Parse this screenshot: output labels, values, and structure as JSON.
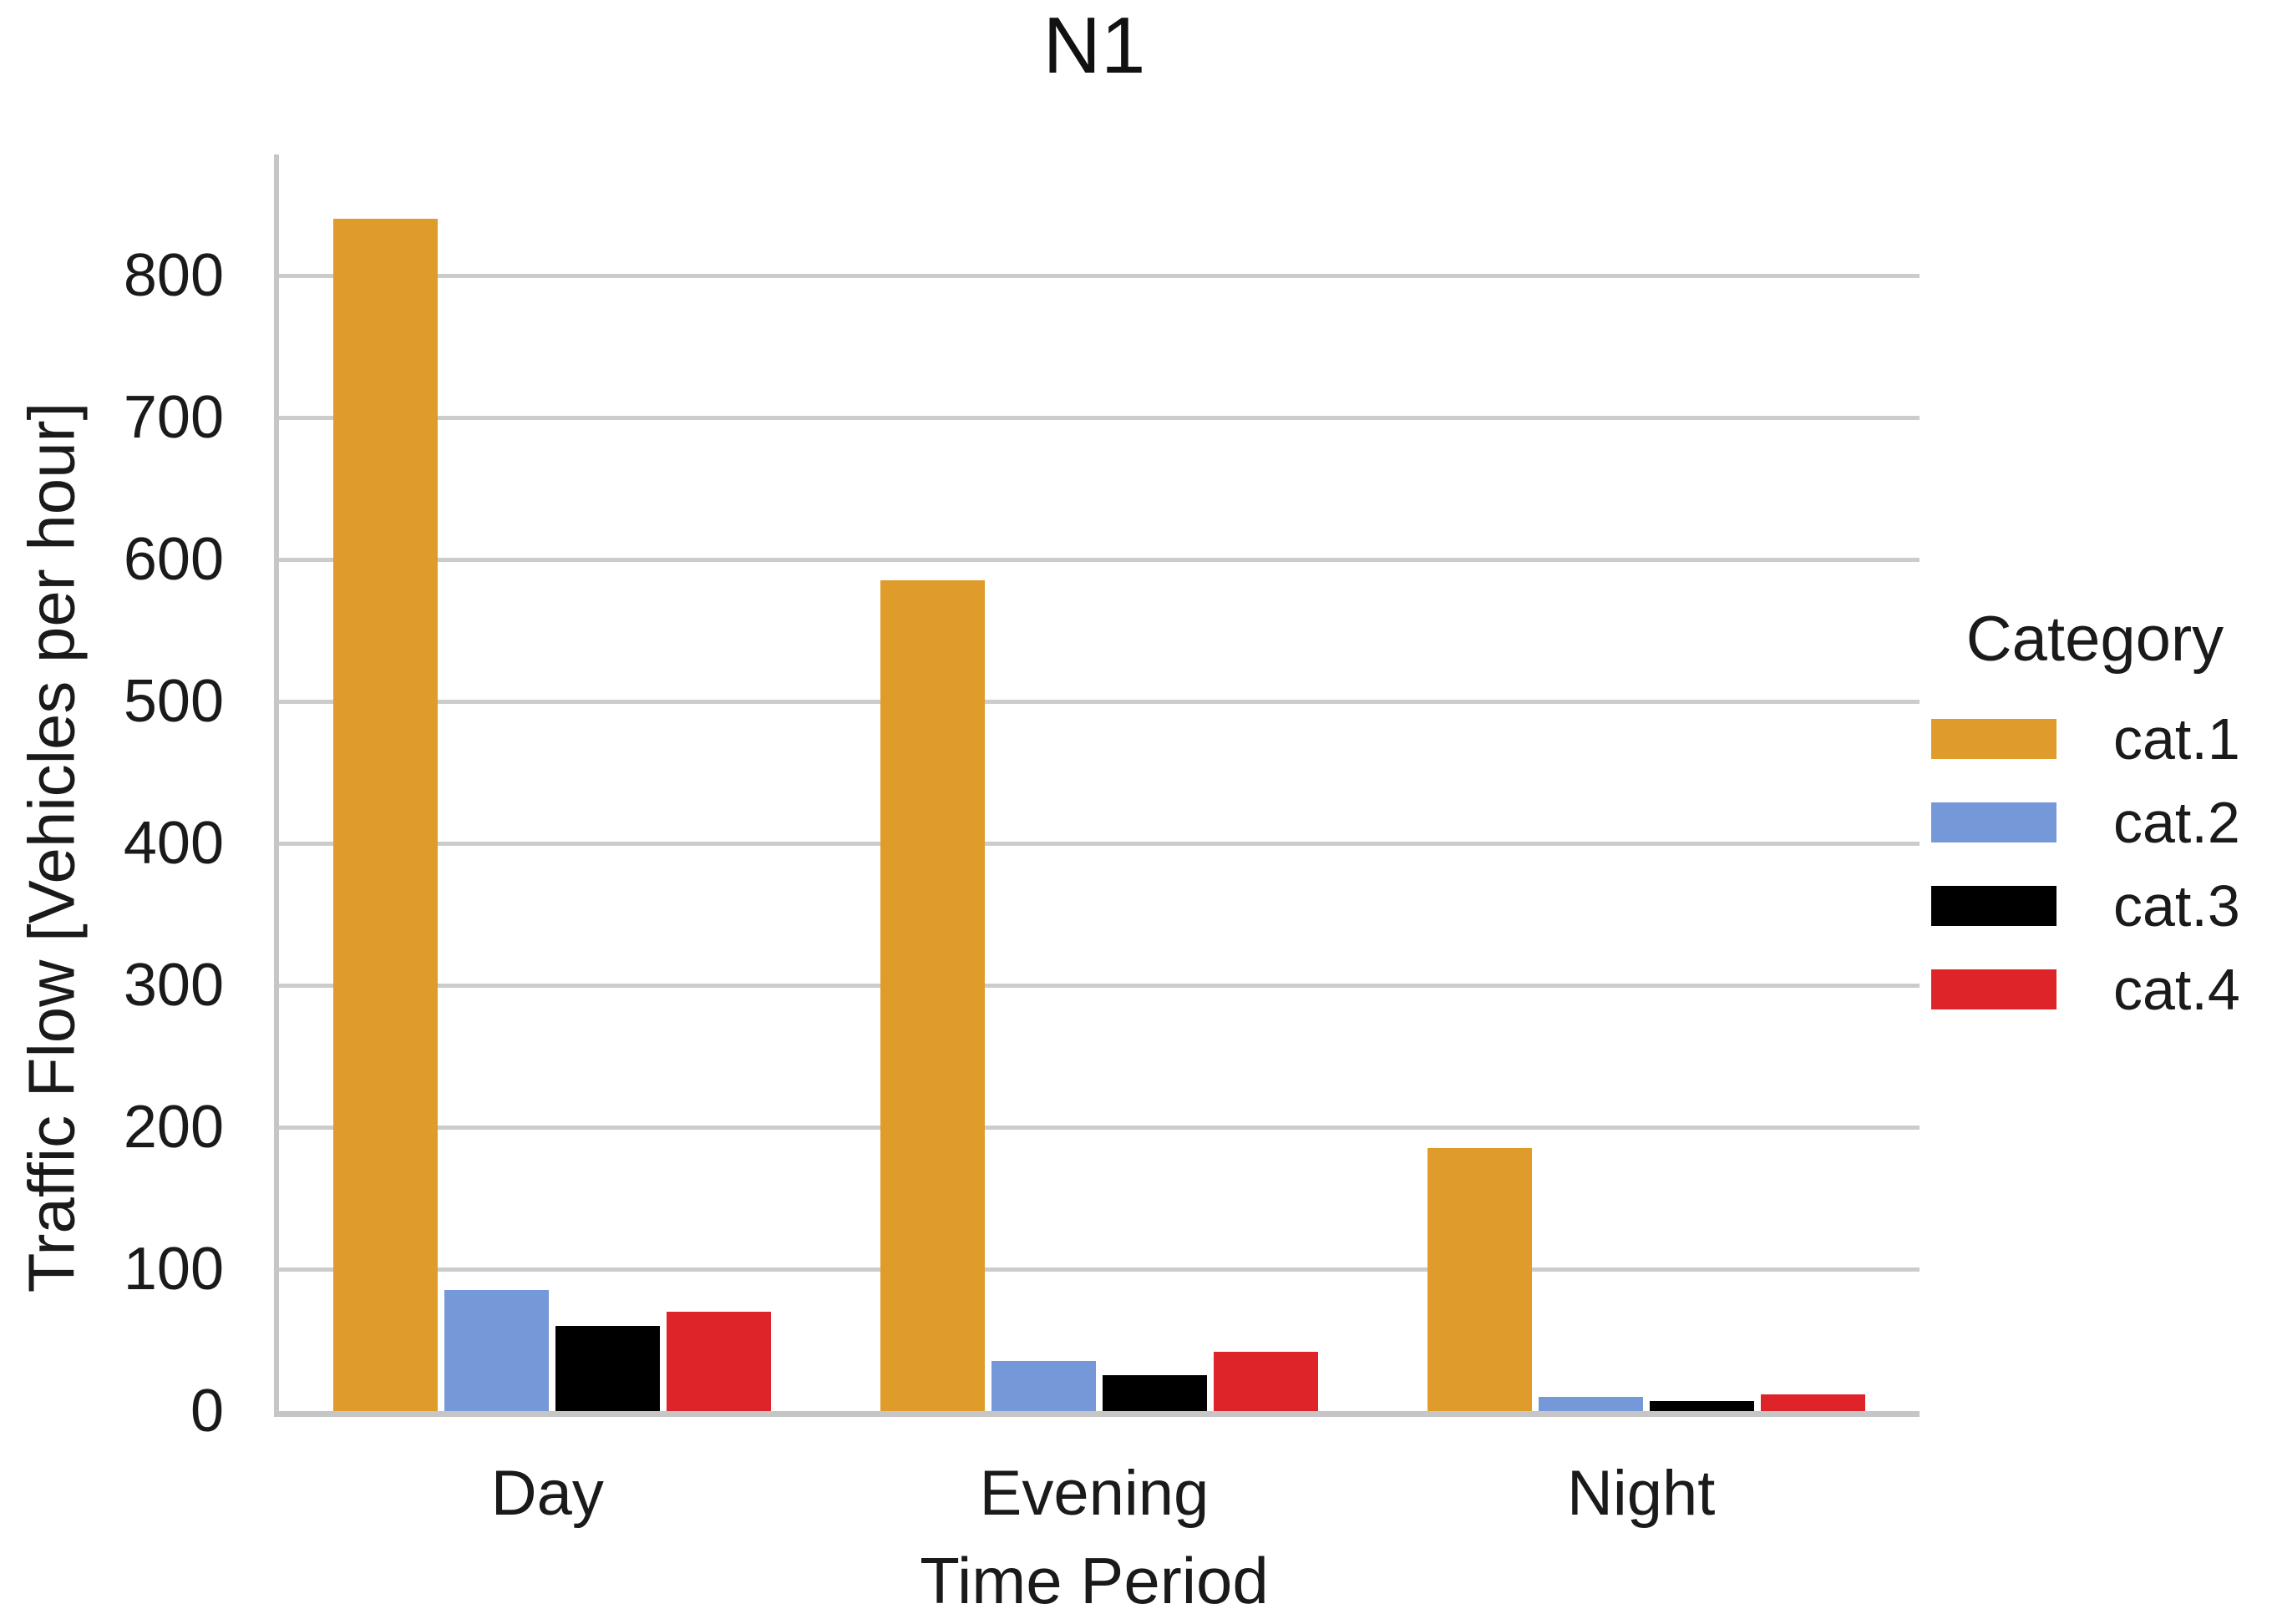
{
  "chart_data": {
    "type": "bar",
    "title": "N1",
    "xlabel": "Time Period",
    "ylabel": "Traffic Flow [Vehicles per hour]",
    "legend_title": "Category",
    "legend_position": "right",
    "grid": true,
    "categories": [
      "Day",
      "Evening",
      "Night"
    ],
    "series": [
      {
        "name": "cat.1",
        "color": "#E09C2B",
        "values": [
          840,
          585,
          185
        ]
      },
      {
        "name": "cat.2",
        "color": "#7598D8",
        "values": [
          85,
          35,
          10
        ]
      },
      {
        "name": "cat.3",
        "color": "#000000",
        "values": [
          60,
          25,
          7
        ]
      },
      {
        "name": "cat.4",
        "color": "#DE2428",
        "values": [
          70,
          42,
          12
        ]
      }
    ],
    "yticks": [
      0,
      100,
      200,
      300,
      400,
      500,
      600,
      700,
      800
    ],
    "ylim": [
      0,
      885
    ],
    "colors": {
      "gridline": "#CCCCCC",
      "spine": "#C6C6C6",
      "text": "#1A1A1A"
    }
  }
}
